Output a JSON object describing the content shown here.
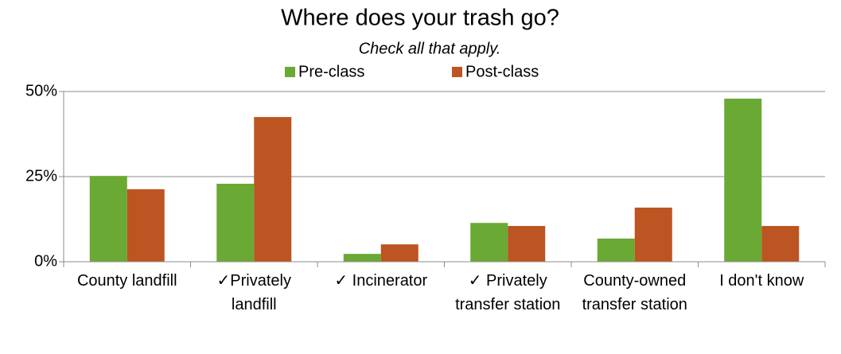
{
  "chart_data": {
    "type": "bar",
    "title": "Where does your trash go?",
    "subtitle": "Check all that apply.",
    "categories": [
      "County landfill",
      "✓Privately landfill",
      "✓ Incinerator",
      "✓ Privately transfer station",
      "County-owned transfer station",
      "I don't know"
    ],
    "series": [
      {
        "name": "Pre-class",
        "color": "#6aa933",
        "values": [
          25.2,
          22.9,
          2.3,
          11.4,
          6.8,
          47.9
        ]
      },
      {
        "name": "Post-class",
        "color": "#bc5521",
        "values": [
          21.3,
          42.5,
          5.1,
          10.5,
          15.9,
          10.5
        ]
      }
    ],
    "ylim": [
      0,
      50
    ],
    "yticks": [
      {
        "value": 0,
        "label": "0%"
      },
      {
        "value": 25,
        "label": "25%"
      },
      {
        "value": 50,
        "label": "50%"
      }
    ],
    "grid": true,
    "legend": "top"
  }
}
